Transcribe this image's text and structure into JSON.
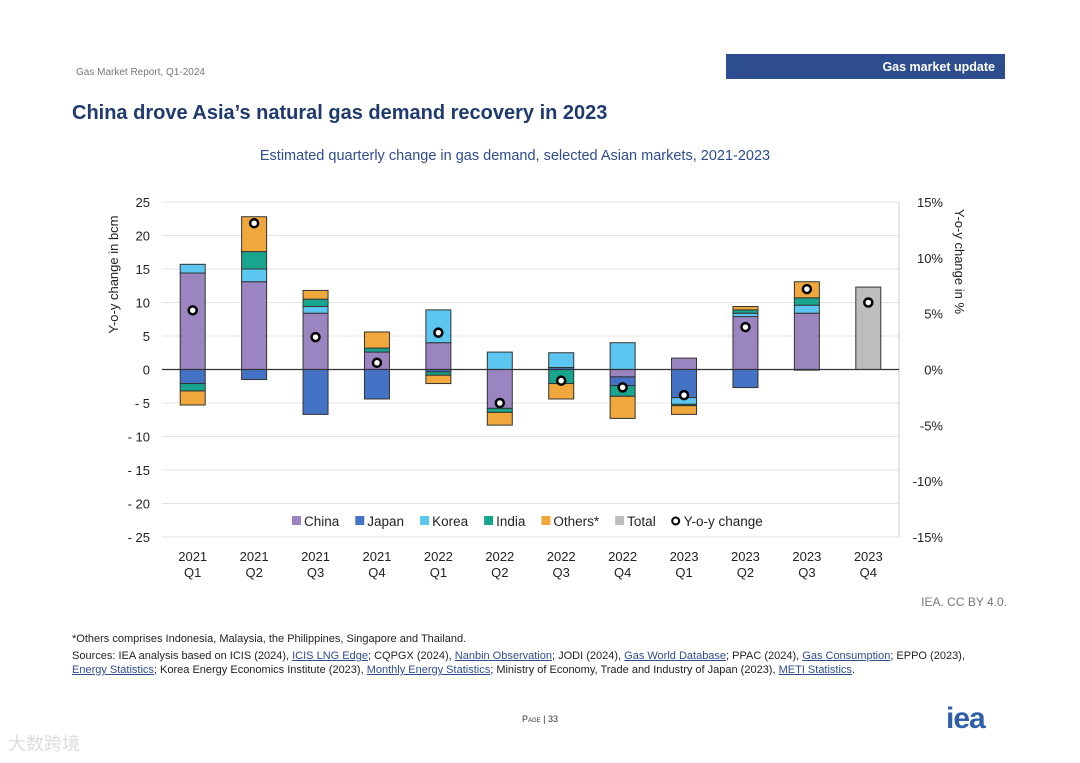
{
  "header": {
    "report": "Gas Market Report, Q1-2024",
    "section": "Gas market update"
  },
  "title": "China drove Asia’s natural gas demand recovery in 2023",
  "colors": {
    "China": "#9b85c0",
    "Japan": "#4472c4",
    "Korea": "#5bc6ef",
    "India": "#17a58e",
    "Others*": "#f0a83c",
    "Total": "#bdbdbd",
    "accent": "#2e4d8e"
  },
  "chart_data": {
    "type": "bar",
    "title": "Estimated quarterly change in gas demand, selected Asian markets, 2021-2023",
    "ylabel": "Y-o-y change in bcm",
    "y2label": "Y-o-y change in %",
    "ylim": [
      -25,
      25
    ],
    "y2lim": [
      -15,
      15
    ],
    "yticks": [
      "25",
      "20",
      "15",
      "10",
      "5",
      "0",
      "- 5",
      "- 10",
      "- 15",
      "- 20",
      "- 25"
    ],
    "y2ticks": [
      "15%",
      "10%",
      "5%",
      "0%",
      "-5%",
      "-10%",
      "-15%"
    ],
    "categories": [
      [
        "2021",
        "Q1"
      ],
      [
        "2021",
        "Q2"
      ],
      [
        "2021",
        "Q3"
      ],
      [
        "2021",
        "Q4"
      ],
      [
        "2022",
        "Q1"
      ],
      [
        "2022",
        "Q2"
      ],
      [
        "2022",
        "Q3"
      ],
      [
        "2022",
        "Q4"
      ],
      [
        "2023",
        "Q1"
      ],
      [
        "2023",
        "Q2"
      ],
      [
        "2023",
        "Q3"
      ],
      [
        "2023",
        "Q4"
      ]
    ],
    "series": [
      {
        "name": "China",
        "values": [
          14.4,
          13.1,
          8.4,
          2.6,
          4.0,
          -5.8,
          0,
          -1.1,
          1.7,
          7.9,
          8.4,
          0
        ]
      },
      {
        "name": "Japan",
        "values": [
          -2.1,
          -1.5,
          -6.7,
          -4.4,
          -0.35,
          0,
          0.3,
          -1.3,
          -4.2,
          -2.7,
          -0.1,
          0
        ]
      },
      {
        "name": "Korea",
        "values": [
          1.3,
          1.9,
          1.0,
          0,
          4.9,
          2.6,
          2.2,
          4.0,
          -1.0,
          0.5,
          1.2,
          0
        ]
      },
      {
        "name": "India",
        "values": [
          -1.1,
          2.6,
          1.1,
          0.6,
          -0.5,
          -0.6,
          -2.1,
          -1.6,
          -0.2,
          0.5,
          1.1,
          0
        ]
      },
      {
        "name": "Others*",
        "values": [
          -2.1,
          5.2,
          1.3,
          2.4,
          -1.25,
          -1.9,
          -2.3,
          -3.3,
          -1.3,
          0.5,
          2.4,
          0
        ]
      },
      {
        "name": "Total",
        "values": [
          0,
          0,
          0,
          0,
          0,
          0,
          0,
          0,
          0,
          0,
          0,
          12.3
        ]
      }
    ],
    "yoy": {
      "name": "Y-o-y change",
      "unit": "%",
      "values": [
        5.3,
        13.1,
        2.9,
        0.6,
        3.3,
        -3.0,
        -1.0,
        -1.6,
        -2.3,
        3.8,
        7.2,
        6.0
      ]
    },
    "legend": "bottom-inside",
    "grid": true
  },
  "credit": "IEA. CC BY 4.0.",
  "notes": {
    "others": "*Others comprises Indonesia, Malaysia, the Philippines, Singapore and Thailand.",
    "s1": "Sources: IEA analysis based on ICIS (2024), ",
    "l1": "ICIS LNG Edge",
    "s2": "; CQPGX (2024), ",
    "l2": "Nanbin Observation",
    "s3": "; JODI (2024), ",
    "l3": "Gas World Database",
    "s4": "; PPAC (2024), ",
    "l4": "Gas Consumption",
    "s5": "; EPPO (2023), ",
    "l5": "Energy Statistics",
    "s6": "; Korea Energy Economics Institute (2023), ",
    "l6": "Monthly Energy Statistics",
    "s7": "; Ministry of Economy, Trade and Industry of Japan (2023), ",
    "l7": "METI Statistics",
    "s8": "."
  },
  "page": "Page | 33",
  "logo": "iea",
  "watermark": "大数跨境"
}
